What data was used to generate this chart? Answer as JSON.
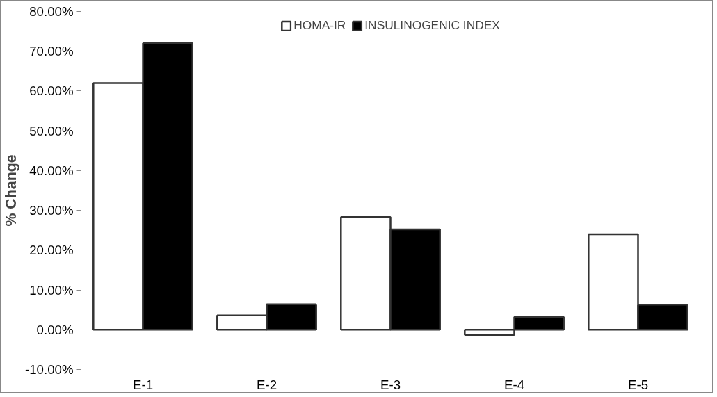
{
  "chart_data": {
    "type": "bar",
    "ylabel": "% Change",
    "categories": [
      "E-1",
      "E-2",
      "E-3",
      "E-4",
      "E-5"
    ],
    "series": [
      {
        "name": "HOMA-IR",
        "color": "#ffffff",
        "values": [
          62,
          3.6,
          28.3,
          -1.3,
          24
        ]
      },
      {
        "name": "INSULINOGENIC INDEX",
        "color": "#000000",
        "values": [
          72,
          6.4,
          25.2,
          3.2,
          6.3
        ]
      }
    ],
    "ylim": [
      -10,
      80
    ],
    "yticks": [
      {
        "value": -10,
        "label": "-10.00%"
      },
      {
        "value": 0,
        "label": "0.00%"
      },
      {
        "value": 10,
        "label": "10.00%"
      },
      {
        "value": 20,
        "label": "20.00%"
      },
      {
        "value": 30,
        "label": "30.00%"
      },
      {
        "value": 40,
        "label": "40.00%"
      },
      {
        "value": 50,
        "label": "50.00%"
      },
      {
        "value": 60,
        "label": "60.00%"
      },
      {
        "value": 70,
        "label": "70.00%"
      },
      {
        "value": 80,
        "label": "80.00%"
      }
    ],
    "grid": false,
    "legend": "top"
  }
}
